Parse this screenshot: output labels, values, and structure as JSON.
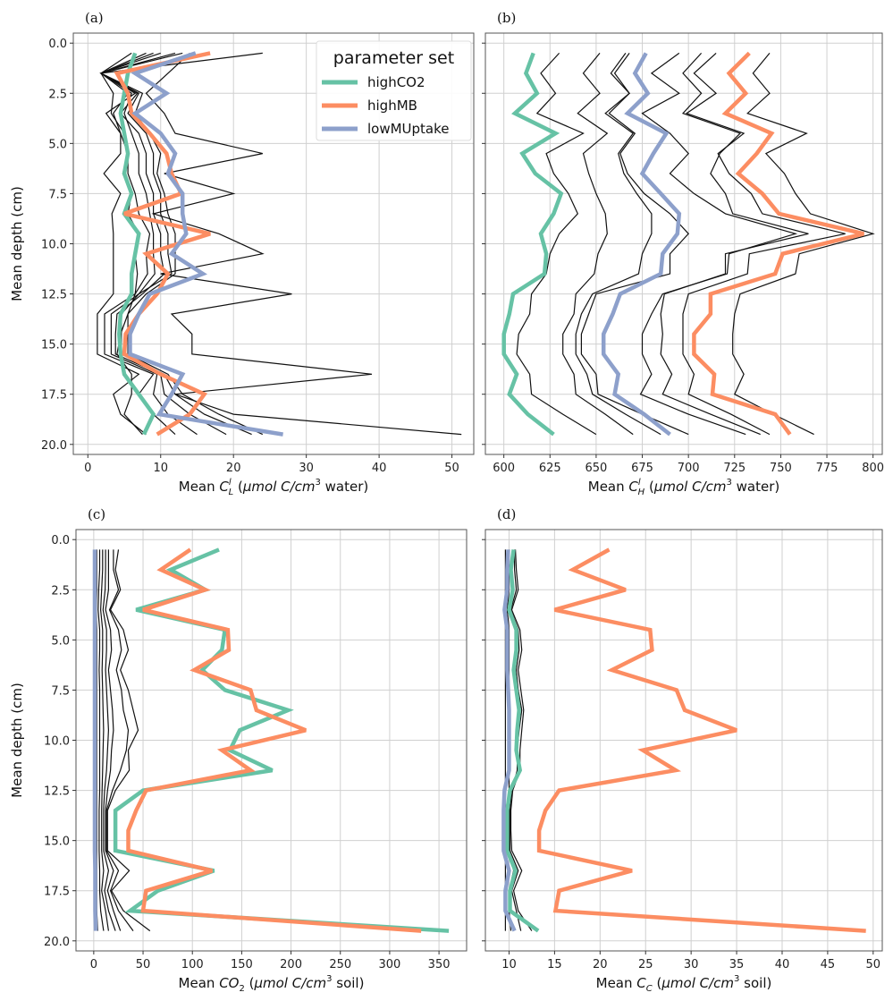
{
  "chart_data": [
    {
      "type": "line",
      "panel_label": "(a)",
      "xlabel_prefix": "Mean ",
      "xlabel_var": "C",
      "xlabel_sup": "l",
      "xlabel_sub": "L",
      "xlabel_suffix_italic": "μmol C/cm",
      "xlabel_units_sup": "3",
      "xlabel_tail": " water)",
      "ylabel": "Mean depth (cm)",
      "xlim": [
        -2,
        53
      ],
      "ylim": [
        20.5,
        -0.5
      ],
      "xticks": [
        0,
        10,
        20,
        30,
        40,
        50
      ],
      "xtick_labels": [
        "0",
        "10",
        "20",
        "30",
        "40",
        "50"
      ],
      "yticks": [
        0,
        2.5,
        5,
        7.5,
        10,
        12.5,
        15,
        17.5,
        20
      ],
      "ytick_labels": [
        "0.0",
        "2.5",
        "5.0",
        "7.5",
        "10.0",
        "12.5",
        "15.0",
        "17.5",
        "20.0"
      ],
      "grid": true,
      "depth": [
        0.5,
        1.5,
        2.5,
        3.5,
        4.5,
        5.5,
        6.5,
        7.5,
        8.5,
        9.5,
        10.5,
        11.5,
        12.5,
        13.5,
        14.5,
        15.5,
        16.5,
        17.5,
        18.5,
        19.5
      ],
      "background_series": [
        [
          24,
          1.8,
          3.5,
          3.2,
          5,
          5.5,
          4.8,
          6,
          5.5,
          7,
          6.5,
          6.8,
          6.5,
          5.5,
          4.5,
          4,
          6,
          6,
          5,
          7.5
        ],
        [
          6,
          1.8,
          6.5,
          2.5,
          4.5,
          4.5,
          2.2,
          4.5,
          3.3,
          3.5,
          3.5,
          3.5,
          3.5,
          1.3,
          1.3,
          1.3,
          7,
          3.5,
          4.5,
          8
        ],
        [
          8,
          1.8,
          5.5,
          3.5,
          4.5,
          5.5,
          5.5,
          6.5,
          7,
          8.5,
          8,
          8.2,
          6.5,
          2.3,
          2.3,
          2.3,
          9,
          7,
          9,
          12
        ],
        [
          9,
          1.8,
          6,
          5,
          6,
          7,
          7,
          8,
          8.5,
          9,
          9,
          9.2,
          7,
          3.2,
          3.2,
          3.2,
          9.5,
          9,
          11,
          15
        ],
        [
          10,
          1.8,
          6.8,
          4.5,
          7,
          8,
          8,
          9,
          9,
          10,
          10,
          10.5,
          7.5,
          4,
          3.8,
          3.8,
          10,
          10.5,
          14,
          19
        ],
        [
          12,
          1.8,
          7,
          5.5,
          8,
          9,
          9,
          10,
          10,
          11,
          11,
          11.5,
          7,
          4.6,
          4.6,
          4.6,
          10.5,
          12,
          16,
          22.5
        ],
        [
          13,
          1.8,
          7.5,
          6.5,
          8.5,
          10,
          9.5,
          10.5,
          11,
          12,
          12,
          12,
          8,
          5.5,
          5.5,
          5.5,
          11,
          13,
          18,
          24
        ],
        [
          14,
          11,
          8,
          10.5,
          12,
          24,
          10.5,
          20,
          9,
          18,
          24,
          10,
          28,
          11.5,
          14.3,
          14.3,
          39,
          12,
          20,
          51.3
        ]
      ],
      "series": [
        {
          "name": "highCO2",
          "color": "#66c2a5",
          "values": [
            6.5,
            5.5,
            5,
            4.5,
            5,
            5.5,
            5,
            6,
            5,
            7,
            6.5,
            6,
            6,
            4.5,
            4.3,
            4.5,
            5,
            7,
            9,
            7.7
          ]
        },
        {
          "name": "highMB",
          "color": "#fc8d62",
          "values": [
            16.8,
            4,
            5.5,
            6,
            8.5,
            10.8,
            11.5,
            12.8,
            5,
            16.8,
            8,
            11,
            9.5,
            7,
            5.2,
            5,
            10,
            16,
            14,
            9.5
          ]
        },
        {
          "name": "lowMUptake",
          "color": "#8da0cb",
          "values": [
            14.8,
            6.5,
            10.8,
            6.5,
            10,
            12,
            11,
            13,
            13,
            13.5,
            11.5,
            15.8,
            8.5,
            7,
            5.8,
            5.8,
            13,
            11.5,
            9.8,
            26.8
          ]
        }
      ],
      "legend": {
        "title": "parameter set",
        "placement": "upper-right",
        "entries": [
          "highCO2",
          "highMB",
          "lowMUptake"
        ]
      }
    },
    {
      "type": "line",
      "panel_label": "(b)",
      "xlabel_prefix": "Mean ",
      "xlabel_var": "C",
      "xlabel_sup": "l",
      "xlabel_sub": "H",
      "xlabel_suffix_italic": "μmol C/cm",
      "xlabel_units_sup": "3",
      "xlabel_tail": " water)",
      "ylabel": "",
      "xlim": [
        590,
        805
      ],
      "ylim": [
        20.5,
        -0.5
      ],
      "xticks": [
        600,
        625,
        650,
        675,
        700,
        725,
        750,
        775,
        800
      ],
      "xtick_labels": [
        "600",
        "625",
        "650",
        "675",
        "700",
        "725",
        "750",
        "775",
        "800"
      ],
      "yticks": [
        0,
        2.5,
        5,
        7.5,
        10,
        12.5,
        15,
        17.5,
        20
      ],
      "ytick_labels": [],
      "grid": true,
      "depth": [
        0.5,
        1.5,
        2.5,
        3.5,
        4.5,
        5.5,
        6.5,
        7.5,
        8.5,
        9.5,
        10.5,
        11.5,
        12.5,
        13.5,
        14.5,
        15.5,
        16.5,
        17.5,
        18.5,
        19.5
      ],
      "background_series": [
        [
          630,
          620,
          628,
          618,
          643,
          623,
          627,
          635,
          640,
          630,
          625,
          623,
          615,
          614,
          608,
          607,
          614,
          615,
          632,
          650
        ],
        [
          652,
          643,
          652,
          640,
          656,
          643,
          646,
          650,
          655,
          656,
          651,
          649,
          639,
          638,
          632,
          632,
          638,
          639,
          655,
          670
        ],
        [
          666,
          658,
          668,
          655,
          670,
          662,
          665,
          672,
          680,
          680,
          675,
          673,
          648,
          642,
          639,
          639,
          645,
          648,
          666,
          685
        ],
        [
          668,
          660,
          668,
          657,
          671,
          663,
          667,
          676,
          690,
          700,
          690,
          690,
          650,
          646,
          642,
          642,
          650,
          651,
          675,
          700
        ],
        [
          695,
          680,
          695,
          675,
          690,
          700,
          690,
          703,
          720,
          758,
          722,
          721,
          686,
          680,
          675,
          675,
          680,
          674,
          700,
          731
        ],
        [
          707,
          697,
          707,
          697,
          728,
          717,
          712,
          720,
          724,
          765,
          720,
          720,
          687,
          685,
          686,
          685,
          691,
          686,
          712,
          739
        ],
        [
          715,
          703,
          715,
          699,
          730,
          716,
          722,
          734,
          740,
          785,
          733,
          732,
          700,
          697,
          697,
          697,
          703,
          700,
          723,
          744
        ],
        [
          744,
          735,
          744,
          732,
          764,
          742,
          752,
          758,
          766,
          800,
          760,
          758,
          728,
          725,
          724,
          724,
          730,
          725,
          746,
          768
        ]
      ],
      "series": [
        {
          "name": "highCO2",
          "color": "#66c2a5",
          "values": [
            616,
            612,
            618,
            606,
            628,
            610,
            617,
            631,
            627,
            620,
            623,
            622,
            605,
            603,
            600,
            600,
            607,
            603,
            613,
            627
          ]
        },
        {
          "name": "highMB",
          "color": "#fc8d62",
          "values": [
            733,
            722,
            731,
            720,
            745,
            737,
            727,
            740,
            749,
            795,
            751,
            747,
            712,
            712,
            703,
            703,
            714,
            713,
            747,
            755
          ]
        },
        {
          "name": "lowMUptake",
          "color": "#8da0cb",
          "values": [
            677,
            671,
            678,
            667,
            688,
            681,
            675,
            685,
            695,
            694,
            686,
            685,
            663,
            659,
            654,
            654,
            662,
            660,
            676,
            690
          ]
        }
      ]
    },
    {
      "type": "line",
      "panel_label": "(c)",
      "xlabel_prefix": "Mean ",
      "xlabel_var": "CO",
      "xlabel_sup": "",
      "xlabel_sub": "2",
      "xlabel_suffix_italic": "μmol C/cm",
      "xlabel_units_sup": "3",
      "xlabel_tail": " soil)",
      "ylabel": "Mean depth (cm)",
      "xlim": [
        -18,
        378
      ],
      "ylim": [
        20.5,
        -0.5
      ],
      "xticks": [
        0,
        50,
        100,
        150,
        200,
        250,
        300,
        350
      ],
      "xtick_labels": [
        "0",
        "50",
        "100",
        "150",
        "200",
        "250",
        "300",
        "350"
      ],
      "yticks": [
        0,
        2.5,
        5,
        7.5,
        10,
        12.5,
        15,
        17.5,
        20
      ],
      "ytick_labels": [
        "0.0",
        "2.5",
        "5.0",
        "7.5",
        "10.0",
        "12.5",
        "15.0",
        "17.5",
        "20.0"
      ],
      "grid": true,
      "depth": [
        0.5,
        1.5,
        2.5,
        3.5,
        4.5,
        5.5,
        6.5,
        7.5,
        8.5,
        9.5,
        10.5,
        11.5,
        12.5,
        13.5,
        14.5,
        15.5,
        16.5,
        17.5,
        18.5,
        19.5
      ],
      "background_series": [
        [
          3,
          3,
          3,
          2.5,
          3,
          3,
          3,
          3,
          3,
          3,
          3,
          3,
          3,
          3,
          3,
          3,
          3,
          3,
          3,
          4
        ],
        [
          6,
          6,
          5,
          4.5,
          6,
          6,
          5.5,
          6,
          6,
          6,
          6,
          6,
          6,
          5.5,
          5.5,
          5.5,
          6,
          6,
          7,
          10
        ],
        [
          9,
          9,
          8,
          7,
          9,
          9,
          8.5,
          9,
          9.5,
          10,
          9.5,
          9,
          8.5,
          8,
          8,
          8,
          10,
          8,
          12,
          15
        ],
        [
          12,
          12,
          11.5,
          9.5,
          13,
          13,
          12,
          13,
          14,
          15,
          14,
          13,
          11,
          10,
          10,
          10,
          15,
          11,
          15,
          22
        ],
        [
          15,
          15,
          15,
          12,
          17,
          18,
          15,
          17,
          19,
          20,
          18,
          17,
          14,
          12,
          12,
          12,
          20,
          14,
          20,
          27
        ],
        [
          20,
          20,
          25,
          16,
          25,
          28,
          23,
          28,
          30,
          35,
          33,
          27,
          19,
          13,
          13,
          13,
          25,
          17,
          25,
          40
        ],
        [
          25,
          22,
          27,
          17,
          30,
          35,
          27,
          35,
          40,
          45,
          35,
          36,
          22,
          14,
          14,
          14,
          36,
          18,
          30,
          57
        ]
      ],
      "series": [
        {
          "name": "highCO2",
          "color": "#66c2a5",
          "values": [
            127,
            78,
            113,
            43,
            133,
            130,
            110,
            133,
            197,
            148,
            138,
            181,
            50,
            22,
            22,
            22,
            122,
            65,
            37,
            360
          ]
        },
        {
          "name": "highMB",
          "color": "#fc8d62",
          "values": [
            98,
            68,
            113,
            50,
            136,
            137,
            102,
            159,
            165,
            215,
            130,
            159,
            53,
            43,
            35,
            35,
            120,
            53,
            50,
            332
          ]
        },
        {
          "name": "lowMUptake",
          "color": "#8da0cb",
          "values": [
            1,
            1,
            1,
            1,
            1,
            1,
            1,
            1,
            1,
            1,
            1,
            1,
            1,
            1,
            1,
            1,
            1.5,
            1.5,
            1.5,
            2
          ]
        }
      ]
    },
    {
      "type": "line",
      "panel_label": "(d)",
      "xlabel_prefix": "Mean ",
      "xlabel_var": "C",
      "xlabel_sup": "",
      "xlabel_sub": "C",
      "xlabel_suffix_italic": "μmol C/cm",
      "xlabel_units_sup": "3",
      "xlabel_tail": " soil)",
      "ylabel": "",
      "xlim": [
        7.4,
        51
      ],
      "ylim": [
        20.5,
        -0.5
      ],
      "xticks": [
        10,
        15,
        20,
        25,
        30,
        35,
        40,
        45,
        50
      ],
      "xtick_labels": [
        "10",
        "15",
        "20",
        "25",
        "30",
        "35",
        "40",
        "45",
        "50"
      ],
      "yticks": [
        0,
        2.5,
        5,
        7.5,
        10,
        12.5,
        15,
        17.5,
        20
      ],
      "ytick_labels": [],
      "grid": true,
      "depth": [
        0.5,
        1.5,
        2.5,
        3.5,
        4.5,
        5.5,
        6.5,
        7.5,
        8.5,
        9.5,
        10.5,
        11.5,
        12.5,
        13.5,
        14.5,
        15.5,
        16.5,
        17.5,
        18.5,
        19.5
      ],
      "background_series": [
        [
          9.6,
          9.6,
          9.6,
          9.6,
          9.6,
          9.6,
          9.6,
          9.6,
          9.6,
          9.6,
          9.6,
          9.6,
          9.6,
          9.6,
          9.6,
          9.6,
          9.6,
          9.6,
          9.6,
          9.6
        ],
        [
          10,
          10,
          10,
          9.8,
          10,
          10,
          10,
          10,
          10,
          10,
          10,
          10,
          10,
          10,
          10,
          10,
          10.5,
          10,
          10,
          10.2
        ],
        [
          10.7,
          10.8,
          11,
          10.3,
          11.2,
          11.4,
          11,
          11.3,
          11.6,
          11.4,
          11.2,
          11.2,
          10.4,
          10.2,
          10.2,
          10.3,
          11.4,
          10.5,
          11,
          12.5
        ],
        [
          10.6,
          10.6,
          10.8,
          10.2,
          11,
          11.1,
          10.8,
          11,
          11.4,
          11.1,
          10.9,
          10.9,
          10.3,
          10.1,
          10.1,
          10.1,
          11,
          10.3,
          10.8,
          11.3
        ]
      ],
      "series": [
        {
          "name": "highCO2",
          "color": "#66c2a5",
          "values": [
            10.5,
            10.2,
            10.4,
            10,
            10.8,
            10.8,
            10.5,
            10.8,
            11.1,
            10.9,
            10.8,
            11.2,
            10.1,
            9.8,
            9.8,
            9.8,
            10.7,
            10.1,
            10.1,
            13.2
          ]
        },
        {
          "name": "highMB",
          "color": "#fc8d62",
          "values": [
            21,
            17,
            22.8,
            15,
            25.5,
            25.7,
            21.3,
            28.4,
            29.3,
            35,
            24.7,
            28.3,
            15.5,
            14,
            13.3,
            13.3,
            23.5,
            15.5,
            15.1,
            49.2
          ]
        },
        {
          "name": "lowMUptake",
          "color": "#8da0cb",
          "values": [
            9.9,
            9.8,
            9.8,
            9.5,
            9.8,
            9.8,
            9.8,
            9.9,
            10,
            10,
            10,
            10,
            9.5,
            9.4,
            9.4,
            9.4,
            10,
            9.6,
            9.6,
            10.6
          ]
        }
      ]
    }
  ]
}
